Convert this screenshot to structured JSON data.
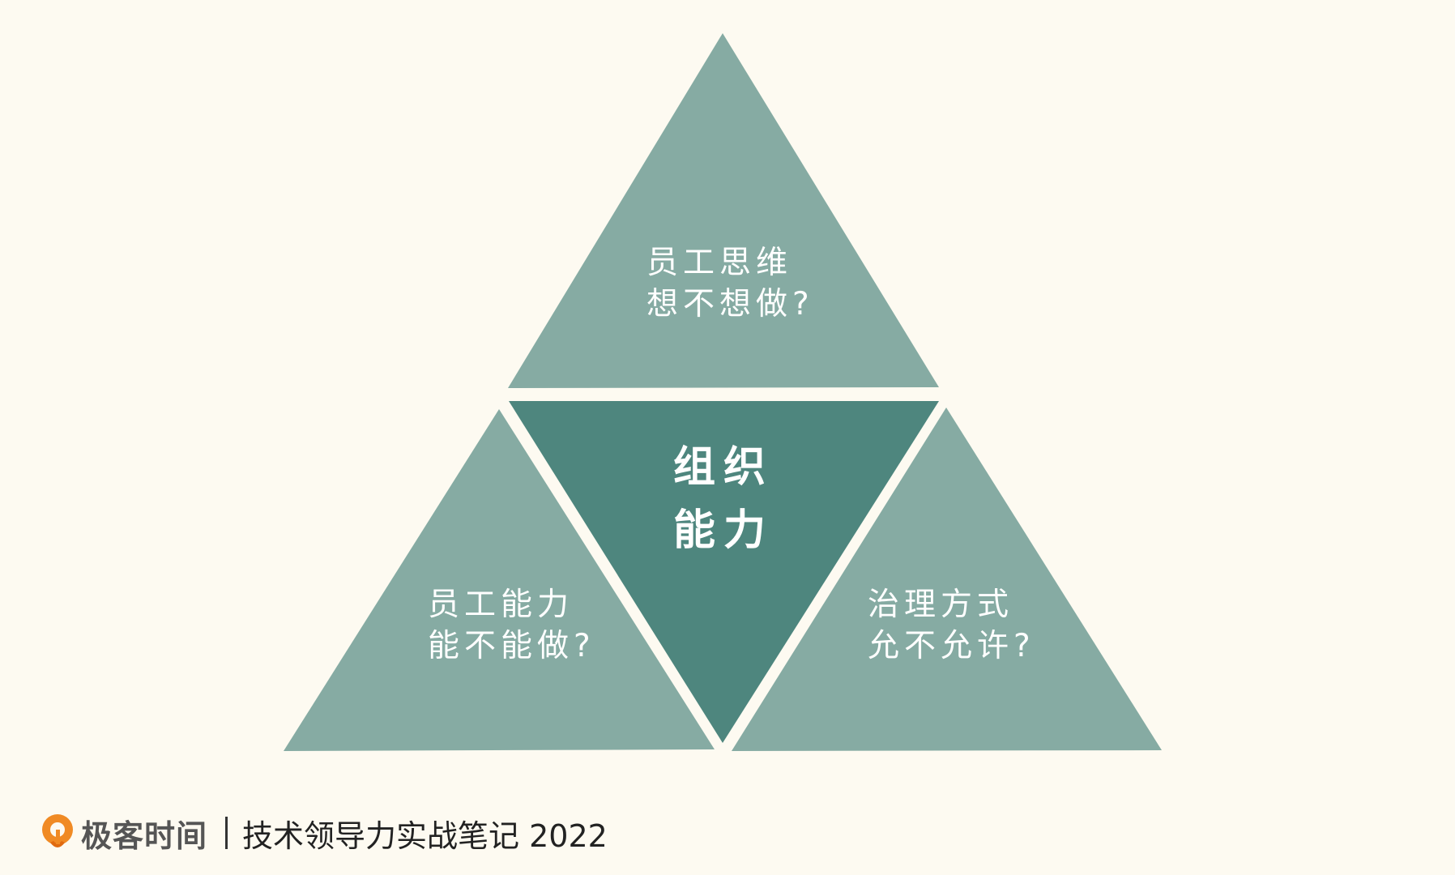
{
  "diagram": {
    "top": {
      "line1": "员工思维",
      "line2": "想不想做?"
    },
    "center": {
      "line1": "组织",
      "line2": "能力"
    },
    "left": {
      "line1": "员工能力",
      "line2": "能不能做?"
    },
    "right": {
      "line1": "治理方式",
      "line2": "允不允许?"
    }
  },
  "colors": {
    "background": "#fdfaf1",
    "outer_triangle": "#86aba3",
    "center_triangle": "#4e867e",
    "logo_orange": "#f08a24"
  },
  "footer": {
    "logo_icon": "geektime-logo-icon",
    "brand": "极客时间",
    "course": "技术领导力实战笔记 2022"
  }
}
